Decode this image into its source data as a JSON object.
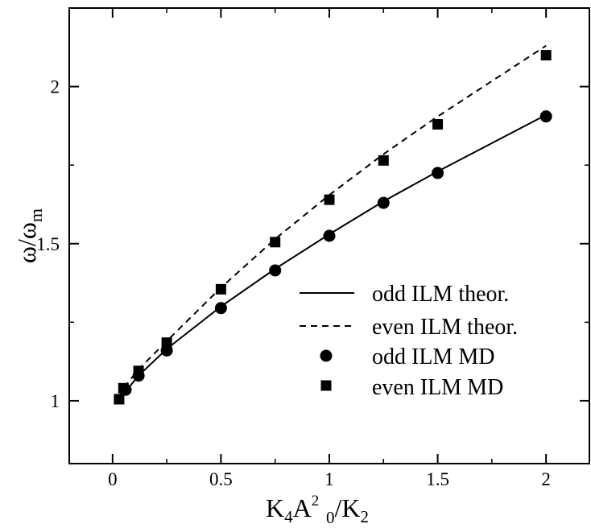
{
  "chart_data": {
    "type": "line",
    "xlim": [
      -0.2,
      2.2
    ],
    "ylim": [
      0.8,
      2.25
    ],
    "x_ticks": [
      0,
      0.5,
      1,
      1.5,
      2
    ],
    "x_tick_labels": [
      "0",
      "0.5",
      "1",
      "1.5",
      "2"
    ],
    "y_ticks": [
      1,
      1.5,
      2
    ],
    "y_tick_labels": [
      "1",
      "1.5",
      "2"
    ],
    "xlabel": {
      "K": "K",
      "sub4": "4",
      "A": "A",
      "sup2": "2",
      "sub0": "0",
      "slash": "/K",
      "sub2": "2"
    },
    "ylabel": {
      "main": "ω/ω",
      "sub": "m"
    },
    "grid": false,
    "legend_position": "right",
    "series": [
      {
        "name": "odd ILM theor.",
        "style": "solid-line",
        "color": "#000000",
        "x": [
          0.03,
          0.06,
          0.12,
          0.25,
          0.5,
          0.75,
          1.0,
          1.25,
          1.5,
          2.0
        ],
        "y": [
          1.01,
          1.03,
          1.08,
          1.165,
          1.3,
          1.42,
          1.53,
          1.635,
          1.73,
          1.91
        ]
      },
      {
        "name": "even ILM theor.",
        "style": "dashed-line",
        "color": "#000000",
        "x": [
          0.03,
          0.05,
          0.12,
          0.25,
          0.5,
          0.75,
          1.0,
          1.25,
          1.5,
          2.0
        ],
        "y": [
          1.01,
          1.04,
          1.1,
          1.19,
          1.36,
          1.515,
          1.655,
          1.785,
          1.905,
          2.13
        ]
      },
      {
        "name": "odd ILM MD",
        "style": "circle-marker",
        "color": "#000000",
        "x": [
          0.06,
          0.12,
          0.25,
          0.5,
          0.75,
          1.0,
          1.25,
          1.5,
          2.0
        ],
        "y": [
          1.035,
          1.08,
          1.16,
          1.295,
          1.415,
          1.525,
          1.63,
          1.725,
          1.905
        ]
      },
      {
        "name": "even ILM MD",
        "style": "square-marker",
        "color": "#000000",
        "x": [
          0.03,
          0.05,
          0.12,
          0.25,
          0.5,
          0.75,
          1.0,
          1.25,
          1.5,
          2.0
        ],
        "y": [
          1.005,
          1.04,
          1.095,
          1.185,
          1.355,
          1.505,
          1.64,
          1.765,
          1.88,
          2.1
        ]
      }
    ]
  }
}
